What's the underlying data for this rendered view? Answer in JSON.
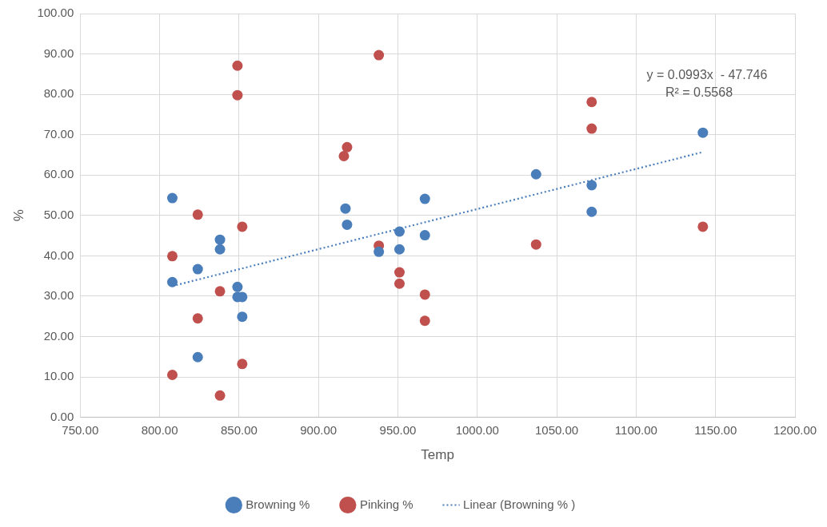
{
  "chart_data": {
    "type": "scatter",
    "xlabel": "Temp",
    "ylabel": "%",
    "xlim": [
      750,
      1200
    ],
    "ylim": [
      0,
      100
    ],
    "xticks": [
      {
        "value": 750,
        "label": "750.00"
      },
      {
        "value": 800,
        "label": "800.00"
      },
      {
        "value": 850,
        "label": "850.00"
      },
      {
        "value": 900,
        "label": "900.00"
      },
      {
        "value": 950,
        "label": "950.00"
      },
      {
        "value": 1000,
        "label": "1000.00"
      },
      {
        "value": 1050,
        "label": "1050.00"
      },
      {
        "value": 1100,
        "label": "1100.00"
      },
      {
        "value": 1150,
        "label": "1150.00"
      },
      {
        "value": 1200,
        "label": "1200.00"
      }
    ],
    "yticks": [
      {
        "value": 0,
        "label": "0.00"
      },
      {
        "value": 10,
        "label": "10.00"
      },
      {
        "value": 20,
        "label": "20.00"
      },
      {
        "value": 30,
        "label": "30.00"
      },
      {
        "value": 40,
        "label": "40.00"
      },
      {
        "value": 50,
        "label": "50.00"
      },
      {
        "value": 60,
        "label": "60.00"
      },
      {
        "value": 70,
        "label": "70.00"
      },
      {
        "value": 80,
        "label": "80.00"
      },
      {
        "value": 90,
        "label": "90.00"
      },
      {
        "value": 100,
        "label": "100.00"
      }
    ],
    "grid": true,
    "legend": "bottom",
    "marker": "circle",
    "series": [
      {
        "name": "Browning %",
        "color": "#4a7ebb",
        "x": [
          808,
          808,
          824,
          824,
          838,
          838,
          849,
          849,
          852,
          852,
          917,
          918,
          938,
          951,
          951,
          967,
          967,
          1037,
          1072,
          1072,
          1142
        ],
        "values": [
          54.3,
          33.5,
          36.7,
          14.9,
          44,
          41.6,
          32.3,
          29.8,
          29.8,
          24.9,
          51.7,
          47.7,
          41,
          46,
          41.6,
          54.1,
          45.1,
          60.2,
          57.5,
          50.9,
          70.5
        ]
      },
      {
        "name": "Pinking %",
        "color": "#c0504d",
        "x": [
          808,
          808,
          824,
          824,
          838,
          838,
          849,
          849,
          852,
          852,
          916,
          918,
          938,
          938,
          951,
          951,
          967,
          967,
          1037,
          1072,
          1072,
          1142
        ],
        "values": [
          39.9,
          10.5,
          50.2,
          24.5,
          31.2,
          5.4,
          87.1,
          79.8,
          47.2,
          13.2,
          64.7,
          66.9,
          89.7,
          42.5,
          35.9,
          33.1,
          30.4,
          23.9,
          42.8,
          78.1,
          71.5,
          47.2
        ]
      },
      {
        "name": "Linear (Browning % )",
        "type": "line",
        "color": "#4a7ebb",
        "line_style": "dotted",
        "marker": "none",
        "x": [
          808,
          1142
        ],
        "values": [
          32.5,
          65.7
        ]
      }
    ],
    "annotations": [
      "y = 0.0993x  - 47.746",
      "R² = 0.5568"
    ]
  }
}
